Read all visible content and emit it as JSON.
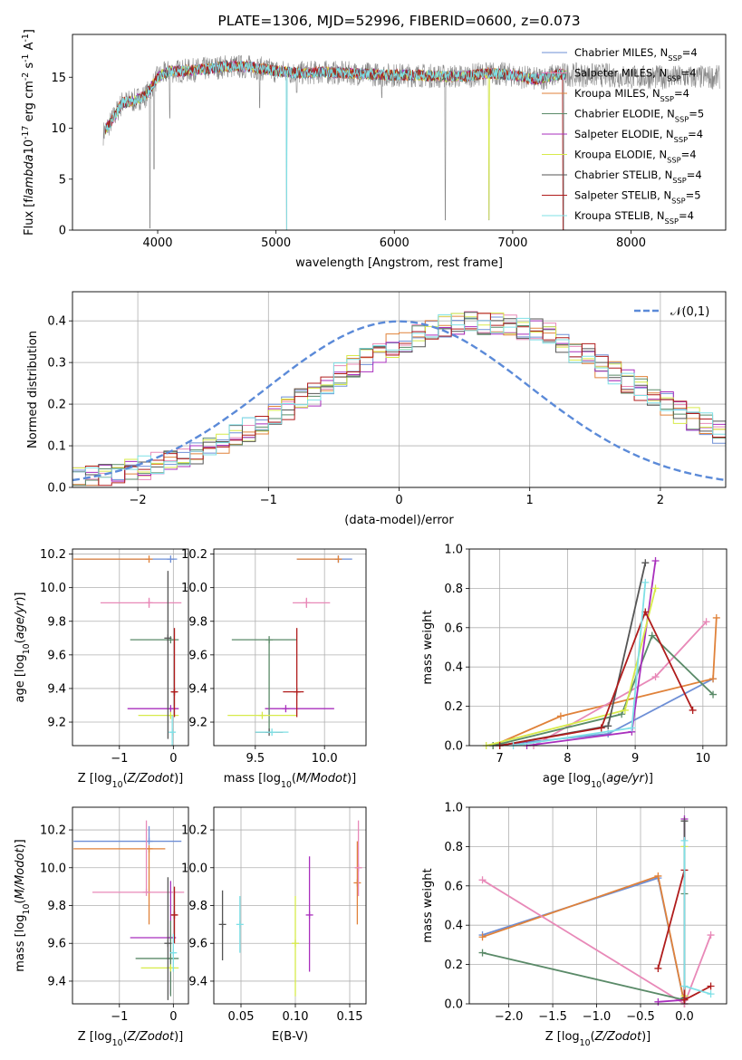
{
  "chart_data": [
    {
      "type": "line",
      "title": "PLATE=1306, MJD=52996, FIBERID=0600, z=0.073",
      "xlabel": "wavelength [Angstrom, rest frame]",
      "ylabel": "Flux [f$_\\lambda$10$^{-17}$ erg cm$^{-2}$ s$^{-1}$ A$^{-1}$]",
      "xlim": [
        3280,
        8800
      ],
      "ylim": [
        0,
        19.2
      ],
      "xticks": [
        4000,
        5000,
        6000,
        7000,
        8000
      ],
      "yticks": [
        0,
        5,
        10,
        15
      ],
      "legend_position": "top-right",
      "series": [
        {
          "name": "Chabrier MILES, N$_{SSP}$=4",
          "color": "#6e8fd6"
        },
        {
          "name": "Salpeter MILES, N$_{SSP}$=4",
          "color": "#e889b8"
        },
        {
          "name": "Kroupa MILES, N$_{SSP}$=4",
          "color": "#e0823a"
        },
        {
          "name": "Chabrier ELODIE, N$_{SSP}$=5",
          "color": "#5a8a68"
        },
        {
          "name": "Salpeter ELODIE, N$_{SSP}$=4",
          "color": "#a92fbd"
        },
        {
          "name": "Kroupa ELODIE, N$_{SSP}$=4",
          "color": "#d7ea4a"
        },
        {
          "name": "Chabrier STELIB, N$_{SSP}$=4",
          "color": "#555555"
        },
        {
          "name": "Salpeter STELIB, N$_{SSP}$=5",
          "color": "#b01c1c"
        },
        {
          "name": "Kroupa STELIB, N$_{SSP}$=4",
          "color": "#7fe0e6"
        }
      ],
      "data_color": "#888888",
      "continuum": [
        [
          3540,
          9.5
        ],
        [
          3600,
          10.5
        ],
        [
          3700,
          12.5
        ],
        [
          3800,
          12.7
        ],
        [
          3900,
          13.2
        ],
        [
          4000,
          15.0
        ],
        [
          4100,
          15.6
        ],
        [
          4200,
          15.6
        ],
        [
          4400,
          15.8
        ],
        [
          4600,
          16.1
        ],
        [
          4800,
          16.0
        ],
        [
          5000,
          15.6
        ],
        [
          5200,
          15.4
        ],
        [
          5400,
          15.5
        ],
        [
          5600,
          15.4
        ],
        [
          5800,
          15.3
        ],
        [
          6000,
          15.2
        ],
        [
          6200,
          15.2
        ],
        [
          6400,
          15.1
        ],
        [
          6600,
          15.1
        ],
        [
          6800,
          15.4
        ],
        [
          7000,
          15.2
        ],
        [
          7200,
          14.8
        ],
        [
          7400,
          15.3
        ],
        [
          7600,
          15.2
        ],
        [
          7800,
          15.2
        ],
        [
          8000,
          15.0
        ],
        [
          8200,
          15.0
        ],
        [
          8400,
          15.0
        ],
        [
          8600,
          15.0
        ],
        [
          8750,
          15.0
        ]
      ],
      "absorption_features": [
        [
          3934,
          0.2
        ],
        [
          3969,
          6.0
        ],
        [
          4102,
          11.0
        ],
        [
          4861,
          12.0
        ],
        [
          5090,
          0.0
        ],
        [
          5175,
          13.5
        ],
        [
          5893,
          13.0
        ],
        [
          6430,
          1.0
        ],
        [
          6800,
          1.0
        ],
        [
          7430,
          0.0
        ]
      ],
      "model_end": 7450
    },
    {
      "type": "histogram",
      "xlabel": "(data-model)/error",
      "ylabel": "Normed distribution",
      "xlim": [
        -2.5,
        2.5
      ],
      "ylim": [
        0,
        0.47
      ],
      "xticks": [
        -2,
        -1,
        0,
        1,
        2
      ],
      "yticks": [
        0.0,
        0.1,
        0.2,
        0.3,
        0.4
      ],
      "legend_position": "top-right",
      "reference_label": "$\\mathcal{N}(0,1)$",
      "reference_color": "#5b8ad8",
      "bin_width": 0.1,
      "bin_start": -2.5,
      "base_profile": [
        0.02,
        0.025,
        0.028,
        0.032,
        0.04,
        0.047,
        0.055,
        0.062,
        0.074,
        0.083,
        0.096,
        0.105,
        0.125,
        0.138,
        0.155,
        0.17,
        0.19,
        0.21,
        0.225,
        0.245,
        0.27,
        0.29,
        0.305,
        0.32,
        0.34,
        0.35,
        0.365,
        0.372,
        0.385,
        0.392,
        0.398,
        0.397,
        0.392,
        0.39,
        0.385,
        0.378,
        0.365,
        0.35,
        0.33,
        0.318,
        0.29,
        0.275,
        0.255,
        0.238,
        0.22,
        0.2,
        0.18,
        0.165,
        0.15,
        0.13,
        0.115,
        0.098,
        0.085,
        0.073,
        0.062,
        0.055,
        0.045,
        0.04,
        0.033,
        0.028
      ]
    },
    {
      "type": "scatter",
      "xlabel": "Z [log$_{10}$($Z/Z_\\odot$)]",
      "ylabel": "age  [log$_{10}$($age/yr$)]",
      "xlim": [
        -1.87,
        0.28
      ],
      "ylim": [
        9.06,
        10.23
      ],
      "xticks": [
        -1,
        0
      ],
      "yticks": [
        9.2,
        9.4,
        9.6,
        9.8,
        10.0,
        10.2
      ],
      "errorbars": [
        {
          "color": "#6e8fd6",
          "x": -0.05,
          "y": 10.17,
          "xerr": [
            1.75,
            0.12
          ],
          "yerr": [
            0,
            0
          ]
        },
        {
          "color": "#e0823a",
          "x": -0.45,
          "y": 10.17,
          "xerr": [
            1.4,
            0
          ],
          "yerr": [
            0,
            0
          ]
        },
        {
          "color": "#e889b8",
          "x": -0.45,
          "y": 9.91,
          "xerr": [
            0.9,
            0.6
          ],
          "yerr": [
            0.03,
            0.03
          ]
        },
        {
          "color": "#a92fbd",
          "x": -0.05,
          "y": 9.28,
          "xerr": [
            0.8,
            0.15
          ],
          "yerr": [
            0,
            0
          ]
        },
        {
          "color": "#5a8a68",
          "x": -0.05,
          "y": 9.69,
          "xerr": [
            0.75,
            0.15
          ],
          "yerr": [
            0,
            0
          ]
        },
        {
          "color": "#d7ea4a",
          "x": -0.05,
          "y": 9.24,
          "xerr": [
            0.6,
            0.15
          ],
          "yerr": [
            0,
            0
          ]
        },
        {
          "color": "#555555",
          "x": -0.1,
          "y": 9.7,
          "xerr": [
            0,
            0
          ],
          "yerr": [
            0.6,
            0.4
          ]
        },
        {
          "color": "#b01c1c",
          "x": 0.02,
          "y": 9.38,
          "xerr": [
            0.05,
            0.05
          ],
          "yerr": [
            0.15,
            0.38
          ]
        },
        {
          "color": "#7fe0e6",
          "x": -0.02,
          "y": 9.14,
          "xerr": [
            0.04,
            0.04
          ],
          "yerr": [
            0.1,
            0.1
          ]
        }
      ]
    },
    {
      "type": "scatter",
      "xlabel": "mass [log$_{10}$($M/M_\\odot$)]",
      "ylabel": "",
      "xlim": [
        9.2,
        10.3
      ],
      "ylim": [
        9.06,
        10.23
      ],
      "xticks": [
        9.5,
        10.0
      ],
      "yticks": [
        9.2,
        9.4,
        9.6,
        9.8,
        10.0,
        10.2
      ],
      "errorbars": [
        {
          "color": "#6e8fd6",
          "x": 10.1,
          "y": 10.17,
          "xerr": [
            0.3,
            0.1
          ],
          "yerr": [
            0,
            0
          ]
        },
        {
          "color": "#e0823a",
          "x": 10.1,
          "y": 10.17,
          "xerr": [
            0.3,
            0
          ],
          "yerr": [
            0,
            0
          ]
        },
        {
          "color": "#e889b8",
          "x": 9.87,
          "y": 9.91,
          "xerr": [
            0.1,
            0.17
          ],
          "yerr": [
            0.03,
            0.03
          ]
        },
        {
          "color": "#a92fbd",
          "x": 9.72,
          "y": 9.28,
          "xerr": [
            0.15,
            0.35
          ],
          "yerr": [
            0,
            0
          ]
        },
        {
          "color": "#5a8a68",
          "x": 9.6,
          "y": 9.69,
          "xerr": [
            0.27,
            0.2
          ],
          "yerr": [
            0.55,
            0
          ]
        },
        {
          "color": "#d7ea4a",
          "x": 9.55,
          "y": 9.24,
          "xerr": [
            0.25,
            0.25
          ],
          "yerr": [
            0,
            0
          ]
        },
        {
          "color": "#555555",
          "x": 9.6,
          "y": 9.14,
          "xerr": [
            0.1,
            0.1
          ],
          "yerr": [
            0,
            0
          ]
        },
        {
          "color": "#b01c1c",
          "x": 9.8,
          "y": 9.38,
          "xerr": [
            0.1,
            0.05
          ],
          "yerr": [
            0.15,
            0.38
          ]
        },
        {
          "color": "#7fe0e6",
          "x": 9.62,
          "y": 9.14,
          "xerr": [
            0.12,
            0.12
          ],
          "yerr": [
            0,
            0
          ]
        }
      ]
    },
    {
      "type": "line",
      "xlabel": "age  [log$_{10}$($age/yr$)]",
      "ylabel": "mass weight",
      "xlim": [
        6.55,
        10.35
      ],
      "ylim": [
        0,
        1.0
      ],
      "xticks": [
        7,
        8,
        9,
        10
      ],
      "yticks": [
        0.0,
        0.2,
        0.4,
        0.6,
        0.8,
        1.0
      ],
      "series": [
        {
          "color": "#6e8fd6",
          "x": [
            6.9,
            8.6,
            10.15
          ],
          "y": [
            0.0,
            0.06,
            0.34
          ]
        },
        {
          "color": "#e0823a",
          "x": [
            6.9,
            7.9,
            10.15,
            10.2
          ],
          "y": [
            0.0,
            0.15,
            0.34,
            0.65
          ]
        },
        {
          "color": "#e889b8",
          "x": [
            7.5,
            9.3,
            10.05
          ],
          "y": [
            0.0,
            0.35,
            0.63
          ]
        },
        {
          "color": "#5a8a68",
          "x": [
            6.9,
            8.8,
            9.25,
            10.15
          ],
          "y": [
            0.0,
            0.16,
            0.56,
            0.26
          ]
        },
        {
          "color": "#a92fbd",
          "x": [
            7.4,
            8.95,
            9.3
          ],
          "y": [
            0.0,
            0.07,
            0.94
          ]
        },
        {
          "color": "#d7ea4a",
          "x": [
            6.8,
            8.85,
            9.3
          ],
          "y": [
            0.0,
            0.18,
            0.8
          ]
        },
        {
          "color": "#555555",
          "x": [
            7.0,
            8.6,
            9.15
          ],
          "y": [
            0.0,
            0.1,
            0.93
          ]
        },
        {
          "color": "#b01c1c",
          "x": [
            7.0,
            8.5,
            9.15,
            9.85
          ],
          "y": [
            0.0,
            0.09,
            0.68,
            0.18
          ]
        },
        {
          "color": "#7fe0e6",
          "x": [
            7.2,
            8.95,
            9.15
          ],
          "y": [
            0.0,
            0.09,
            0.83
          ]
        }
      ]
    },
    {
      "type": "scatter",
      "xlabel": "Z [log$_{10}$($Z/Z_\\odot$)]",
      "ylabel": "mass [log$_{10}$($M/M_\\odot$)]",
      "xlim": [
        -1.87,
        0.28
      ],
      "ylim": [
        9.28,
        10.32
      ],
      "xticks": [
        -1,
        0
      ],
      "yticks": [
        9.4,
        9.6,
        9.8,
        10.0,
        10.2
      ],
      "errorbars": [
        {
          "color": "#6e8fd6",
          "x": -0.45,
          "y": 10.14,
          "xerr": [
            1.4,
            0.6
          ],
          "yerr": [
            0,
            0.08
          ]
        },
        {
          "color": "#e0823a",
          "x": -0.45,
          "y": 10.1,
          "xerr": [
            1.4,
            0.3
          ],
          "yerr": [
            0.4,
            0
          ]
        },
        {
          "color": "#e889b8",
          "x": -0.5,
          "y": 9.87,
          "xerr": [
            1.0,
            0.7
          ],
          "yerr": [
            0,
            0.38
          ]
        },
        {
          "color": "#a92fbd",
          "x": -0.05,
          "y": 9.63,
          "xerr": [
            0.75,
            0.1
          ],
          "yerr": [
            0.3,
            0.3
          ]
        },
        {
          "color": "#5a8a68",
          "x": -0.05,
          "y": 9.52,
          "xerr": [
            0.65,
            0.15
          ],
          "yerr": [
            0.2,
            0.2
          ]
        },
        {
          "color": "#d7ea4a",
          "x": -0.05,
          "y": 9.47,
          "xerr": [
            0.55,
            0.15
          ],
          "yerr": [
            0,
            0
          ]
        },
        {
          "color": "#555555",
          "x": -0.1,
          "y": 9.6,
          "xerr": [
            0,
            0
          ],
          "yerr": [
            0.3,
            0.35
          ]
        },
        {
          "color": "#b01c1c",
          "x": 0.02,
          "y": 9.75,
          "xerr": [
            0.05,
            0.05
          ],
          "yerr": [
            0.15,
            0.15
          ]
        },
        {
          "color": "#7fe0e6",
          "x": 0.0,
          "y": 9.55,
          "xerr": [
            0.04,
            0.04
          ],
          "yerr": [
            0.1,
            0.1
          ]
        }
      ]
    },
    {
      "type": "scatter",
      "xlabel": "E(B-V)",
      "ylabel": "",
      "xlim": [
        0.025,
        0.165
      ],
      "ylim": [
        9.28,
        10.32
      ],
      "xticks": [
        0.05,
        0.1,
        0.15
      ],
      "yticks": [
        9.4,
        9.6,
        9.8,
        10.0,
        10.2
      ],
      "errorbars": [
        {
          "color": "#555555",
          "x": 0.033,
          "y": 9.7,
          "xerr": [
            0,
            0
          ],
          "yerr": [
            0.19,
            0.18
          ]
        },
        {
          "color": "#7fe0e6",
          "x": 0.049,
          "y": 9.7,
          "xerr": [
            0,
            0
          ],
          "yerr": [
            0.15,
            0.15
          ]
        },
        {
          "color": "#d7ea4a",
          "x": 0.1,
          "y": 9.6,
          "xerr": [
            0,
            0
          ],
          "yerr": [
            0.28,
            0.25
          ]
        },
        {
          "color": "#a92fbd",
          "x": 0.113,
          "y": 9.75,
          "xerr": [
            0,
            0
          ],
          "yerr": [
            0.3,
            0.31
          ]
        },
        {
          "color": "#e0823a",
          "x": 0.157,
          "y": 9.92,
          "xerr": [
            0,
            0
          ],
          "yerr": [
            0.22,
            0.22
          ]
        },
        {
          "color": "#e889b8",
          "x": 0.158,
          "y": 10.0,
          "xerr": [
            0,
            0
          ],
          "yerr": [
            0.15,
            0.25
          ]
        }
      ]
    },
    {
      "type": "line",
      "xlabel": "Z [log$_{10}$($Z/Z_\\odot$)]",
      "ylabel": "mass weight",
      "xlim": [
        -2.45,
        0.48
      ],
      "ylim": [
        0,
        1.0
      ],
      "xticks": [
        -2.0,
        -1.5,
        -1.0,
        -0.5,
        0.0
      ],
      "yticks": [
        0.0,
        0.2,
        0.4,
        0.6,
        0.8,
        1.0
      ],
      "series": [
        {
          "color": "#6e8fd6",
          "x": [
            -2.3,
            -0.3,
            0.0
          ],
          "y": [
            0.35,
            0.64,
            0.0
          ]
        },
        {
          "color": "#e0823a",
          "x": [
            -2.3,
            -0.3,
            0.0
          ],
          "y": [
            0.34,
            0.65,
            0.0
          ]
        },
        {
          "color": "#e889b8",
          "x": [
            -2.3,
            0.0,
            0.3
          ],
          "y": [
            0.63,
            0.0,
            0.35
          ]
        },
        {
          "color": "#5a8a68",
          "x": [
            -2.3,
            0.0,
            0.0
          ],
          "y": [
            0.26,
            0.02,
            0.56
          ]
        },
        {
          "color": "#a92fbd",
          "x": [
            -0.3,
            0.0,
            0.0
          ],
          "y": [
            0.01,
            0.02,
            0.94
          ]
        },
        {
          "color": "#d7ea4a",
          "x": [
            0.0,
            0.0
          ],
          "y": [
            0.04,
            0.8
          ]
        },
        {
          "color": "#555555",
          "x": [
            0.0,
            0.0
          ],
          "y": [
            0.03,
            0.93
          ]
        },
        {
          "color": "#b01c1c",
          "x": [
            -0.3,
            0.0,
            0.0,
            0.3
          ],
          "y": [
            0.18,
            0.68,
            0.02,
            0.09
          ]
        },
        {
          "color": "#7fe0e6",
          "x": [
            0.0,
            0.0,
            0.3
          ],
          "y": [
            0.83,
            0.09,
            0.05
          ]
        }
      ]
    }
  ]
}
